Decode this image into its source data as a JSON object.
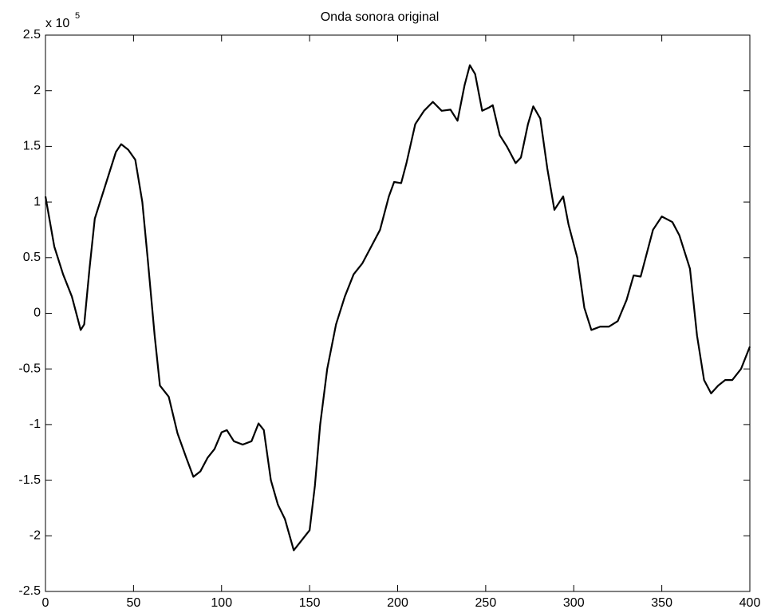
{
  "chart_data": {
    "type": "line",
    "title": "Onda sonora original",
    "y_multiplier": "x 10",
    "y_multiplier_exponent": "5",
    "x": [
      0,
      5,
      10,
      15,
      20,
      22,
      25,
      28,
      32,
      36,
      40,
      43,
      47,
      51,
      55,
      58,
      62,
      65,
      70,
      75,
      80,
      84,
      88,
      92,
      96,
      100,
      103,
      107,
      112,
      117,
      121,
      124,
      128,
      132,
      136,
      141,
      145,
      150,
      153,
      156,
      160,
      165,
      170,
      175,
      180,
      185,
      190,
      195,
      198,
      202,
      205,
      210,
      215,
      220,
      225,
      230,
      234,
      238,
      241,
      244,
      248,
      252,
      254,
      258,
      262,
      267,
      270,
      274,
      277,
      281,
      285,
      289,
      294,
      297,
      302,
      306,
      310,
      315,
      320,
      325,
      330,
      334,
      338,
      345,
      350,
      356,
      360,
      366,
      370,
      374,
      378,
      382,
      386,
      390,
      395,
      400
    ],
    "series": [
      {
        "color": "#000000",
        "values": [
          1.05,
          0.6,
          0.35,
          0.15,
          -0.15,
          -0.1,
          0.4,
          0.85,
          1.05,
          1.25,
          1.45,
          1.52,
          1.47,
          1.38,
          1.0,
          0.5,
          -0.2,
          -0.65,
          -0.75,
          -1.08,
          -1.3,
          -1.47,
          -1.42,
          -1.3,
          -1.22,
          -1.07,
          -1.05,
          -1.15,
          -1.18,
          -1.15,
          -0.99,
          -1.05,
          -1.5,
          -1.72,
          -1.85,
          -2.13,
          -2.05,
          -1.95,
          -1.55,
          -1.0,
          -0.5,
          -0.1,
          0.15,
          0.35,
          0.45,
          0.6,
          0.75,
          1.05,
          1.18,
          1.17,
          1.35,
          1.7,
          1.82,
          1.9,
          1.82,
          1.83,
          1.73,
          2.05,
          2.23,
          2.15,
          1.82,
          1.85,
          1.87,
          1.6,
          1.5,
          1.35,
          1.4,
          1.7,
          1.86,
          1.75,
          1.3,
          0.93,
          1.05,
          0.8,
          0.5,
          0.05,
          -0.15,
          -0.12,
          -0.12,
          -0.07,
          0.12,
          0.34,
          0.33,
          0.75,
          0.87,
          0.82,
          0.7,
          0.4,
          -0.2,
          -0.6,
          -0.72,
          -0.65,
          -0.6,
          -0.6,
          -0.5,
          -0.3
        ]
      }
    ],
    "xlim": [
      0,
      400
    ],
    "xticks": [
      0,
      50,
      100,
      150,
      200,
      250,
      300,
      350,
      400
    ],
    "ylim": [
      -2.5,
      2.5
    ],
    "yticks": [
      -2.5,
      -2,
      -1.5,
      -1,
      -0.5,
      0,
      0.5,
      1,
      1.5,
      2,
      2.5
    ],
    "grid": false
  }
}
